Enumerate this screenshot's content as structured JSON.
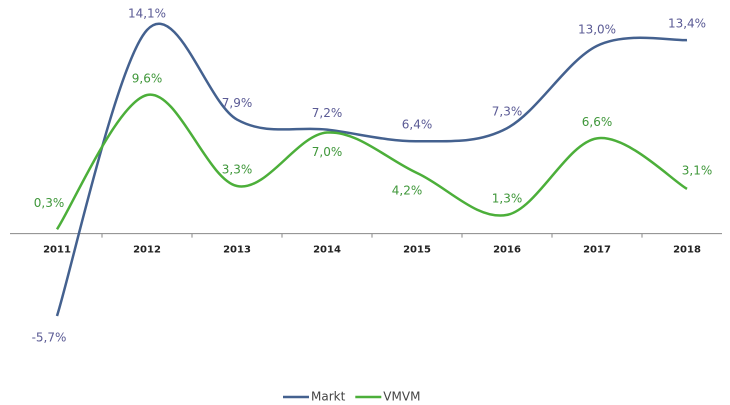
{
  "chart_data": {
    "type": "line",
    "categories": [
      "2011",
      "2012",
      "2013",
      "2014",
      "2015",
      "2016",
      "2017",
      "2018"
    ],
    "series": [
      {
        "name": "Markt",
        "color": "#44618f",
        "label_color": "#5b5b95",
        "values": [
          -5.7,
          14.1,
          7.9,
          7.2,
          6.4,
          7.3,
          13.0,
          13.4
        ],
        "value_labels": [
          "-5,7%",
          "14,1%",
          "7,9%",
          "7,2%",
          "6,4%",
          "7,3%",
          "13,0%",
          "13,4%"
        ]
      },
      {
        "name": "VMVM",
        "color": "#4caf3a",
        "label_color": "#3f973a",
        "values": [
          0.3,
          9.6,
          3.3,
          7.0,
          4.2,
          1.3,
          6.6,
          3.1
        ],
        "value_labels": [
          "0,3%",
          "9,6%",
          "3,3%",
          "7,0%",
          "4,2%",
          "1,3%",
          "6,6%",
          "3,1%"
        ]
      }
    ],
    "legend": "bottom"
  }
}
